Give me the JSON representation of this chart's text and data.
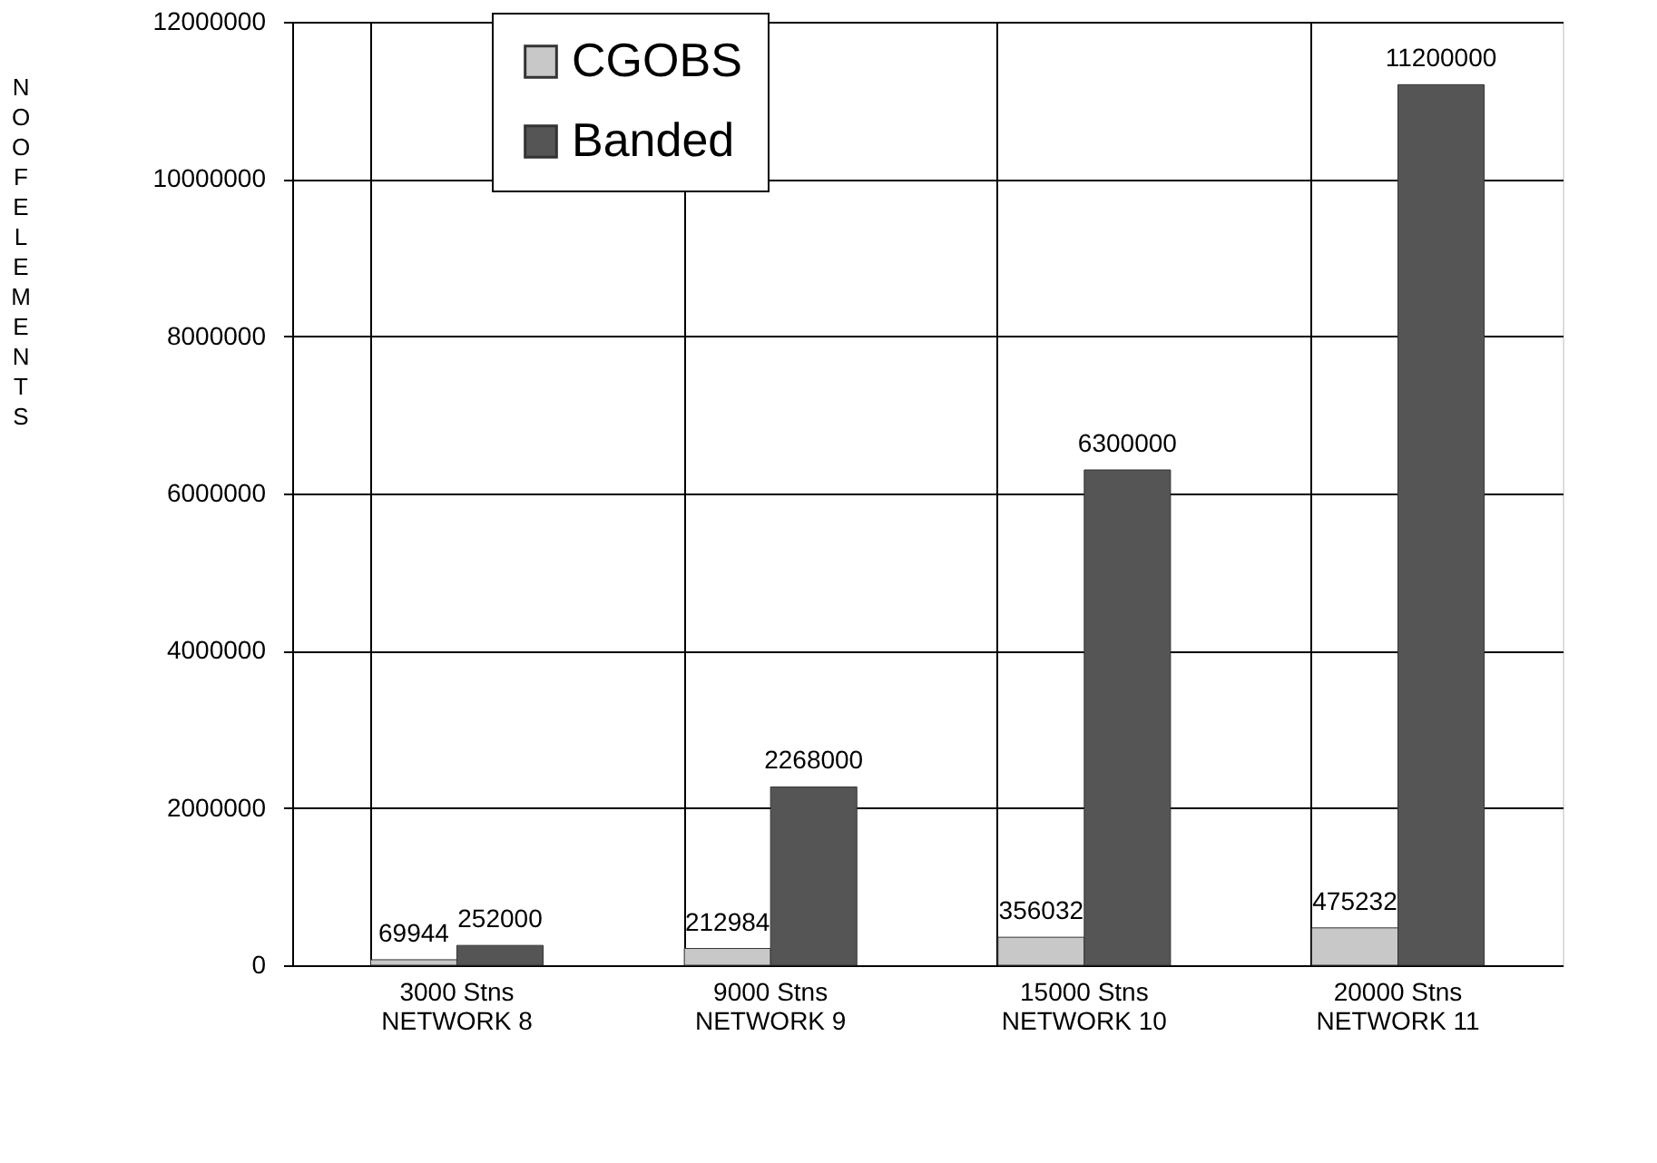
{
  "chart_data": {
    "type": "bar",
    "ylabel": "NO OF ELEMENTS",
    "categories": [
      "3000 Stns\nNETWORK 8",
      "9000 Stns\nNETWORK 9",
      "15000 Stns\nNETWORK 10",
      "20000 Stns\nNETWORK 11"
    ],
    "series": [
      {
        "name": "CGOBS",
        "color": "#c8c8c8",
        "values": [
          69944,
          212984,
          356032,
          475232
        ]
      },
      {
        "name": "Banded",
        "color": "#555555",
        "values": [
          252000,
          2268000,
          6300000,
          11200000
        ]
      }
    ],
    "ylim": [
      0,
      12000000
    ],
    "yticks": [
      0,
      2000000,
      4000000,
      6000000,
      8000000,
      10000000,
      12000000
    ],
    "grid": true,
    "legend": "top left",
    "data_labels": true
  }
}
